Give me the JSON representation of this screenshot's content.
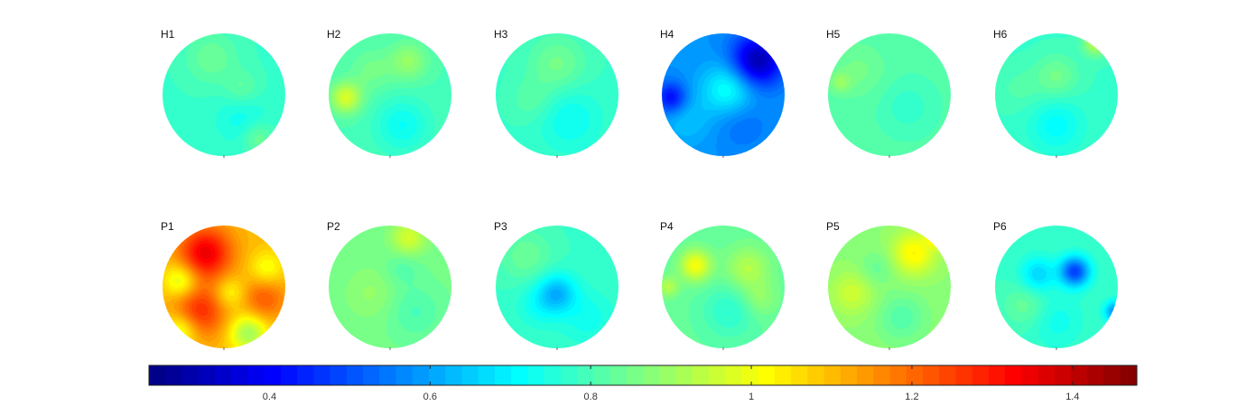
{
  "chart_data": {
    "type": "heatmap",
    "colormap": "jet",
    "colorbar": {
      "range": [
        0.25,
        1.48
      ],
      "ticks": [
        0.4,
        0.6,
        0.8,
        1,
        1.2,
        1.4
      ],
      "tick_labels": [
        "0.4",
        "0.6",
        "0.8",
        "1",
        "1.2",
        "1.4"
      ],
      "levels": 60,
      "placement": "bottom"
    },
    "panels": [
      {
        "label": "H1",
        "base": 0.78,
        "blobs": [
          [
            0.55,
            0.7,
            0.07,
            0.18
          ],
          [
            0.3,
            -0.1,
            0.05,
            0.2
          ],
          [
            -0.2,
            -0.6,
            0.06,
            0.3
          ],
          [
            0.3,
            0.4,
            -0.05,
            0.3
          ]
        ]
      },
      {
        "label": "H2",
        "base": 0.8,
        "blobs": [
          [
            -0.72,
            0.05,
            0.17,
            0.18
          ],
          [
            0.3,
            -0.55,
            0.09,
            0.22
          ],
          [
            0.2,
            0.5,
            -0.08,
            0.3
          ],
          [
            -0.3,
            -0.4,
            0.05,
            0.25
          ]
        ]
      },
      {
        "label": "H3",
        "base": 0.78,
        "blobs": [
          [
            0.0,
            -0.5,
            0.07,
            0.32
          ],
          [
            0.2,
            0.4,
            -0.06,
            0.35
          ],
          [
            -0.4,
            0.1,
            0.04,
            0.25
          ]
        ]
      },
      {
        "label": "H4",
        "base": 0.58,
        "blobs": [
          [
            0.55,
            -0.55,
            -0.28,
            0.3
          ],
          [
            -0.85,
            0.05,
            -0.18,
            0.18
          ],
          [
            0.1,
            -0.1,
            0.16,
            0.3
          ],
          [
            -0.6,
            0.4,
            0.06,
            0.3
          ],
          [
            0.3,
            0.45,
            -0.05,
            0.3
          ]
        ]
      },
      {
        "label": "H5",
        "base": 0.81,
        "blobs": [
          [
            -0.5,
            -0.4,
            0.04,
            0.3
          ],
          [
            0.3,
            0.2,
            -0.04,
            0.3
          ],
          [
            -0.8,
            -0.2,
            0.07,
            0.12
          ]
        ]
      },
      {
        "label": "H6",
        "base": 0.78,
        "blobs": [
          [
            0.65,
            -0.85,
            0.16,
            0.15
          ],
          [
            0.0,
            -0.3,
            0.07,
            0.25
          ],
          [
            0.0,
            0.5,
            -0.07,
            0.3
          ],
          [
            -0.6,
            -0.1,
            0.03,
            0.25
          ]
        ]
      },
      {
        "label": "P1",
        "base": 1.1,
        "blobs": [
          [
            -0.3,
            -0.55,
            0.25,
            0.3
          ],
          [
            -0.4,
            0.4,
            0.18,
            0.3
          ],
          [
            0.7,
            -0.3,
            -0.1,
            0.2
          ],
          [
            0.65,
            0.2,
            0.12,
            0.25
          ],
          [
            -0.7,
            -0.1,
            -0.15,
            0.2
          ],
          [
            0.4,
            0.75,
            -0.2,
            0.22
          ],
          [
            -0.7,
            0.7,
            -0.15,
            0.2
          ],
          [
            0.1,
            0.1,
            -0.1,
            0.18
          ]
        ]
      },
      {
        "label": "P2",
        "base": 0.85,
        "blobs": [
          [
            0.3,
            -0.8,
            0.12,
            0.2
          ],
          [
            -0.3,
            0.1,
            0.04,
            0.3
          ],
          [
            0.4,
            0.4,
            -0.05,
            0.3
          ],
          [
            0.2,
            -0.3,
            -0.04,
            0.2
          ]
        ]
      },
      {
        "label": "P3",
        "base": 0.78,
        "blobs": [
          [
            0.0,
            0.1,
            -0.15,
            0.22
          ],
          [
            0.5,
            0.5,
            -0.05,
            0.3
          ],
          [
            -0.5,
            -0.5,
            0.06,
            0.3
          ],
          [
            -0.3,
            0.3,
            -0.05,
            0.25
          ]
        ]
      },
      {
        "label": "P4",
        "base": 0.83,
        "blobs": [
          [
            -0.45,
            -0.35,
            0.18,
            0.18
          ],
          [
            0.4,
            -0.3,
            0.1,
            0.25
          ],
          [
            -0.9,
            0.0,
            0.1,
            0.12
          ],
          [
            0.1,
            0.4,
            -0.07,
            0.3
          ],
          [
            0.6,
            0.2,
            0.06,
            0.2
          ]
        ]
      },
      {
        "label": "P5",
        "base": 0.88,
        "blobs": [
          [
            0.4,
            -0.55,
            0.15,
            0.25
          ],
          [
            0.8,
            -0.85,
            0.25,
            0.12
          ],
          [
            -0.6,
            0.1,
            0.08,
            0.25
          ],
          [
            0.2,
            0.5,
            -0.07,
            0.28
          ],
          [
            -0.2,
            -0.3,
            -0.05,
            0.2
          ]
        ]
      },
      {
        "label": "P6",
        "base": 0.78,
        "blobs": [
          [
            0.3,
            -0.25,
            -0.3,
            0.17
          ],
          [
            -0.3,
            -0.2,
            -0.12,
            0.2
          ],
          [
            0.0,
            0.55,
            -0.05,
            0.3
          ],
          [
            0.95,
            0.4,
            -0.2,
            0.12
          ],
          [
            -0.5,
            0.3,
            0.06,
            0.25
          ]
        ]
      }
    ]
  }
}
